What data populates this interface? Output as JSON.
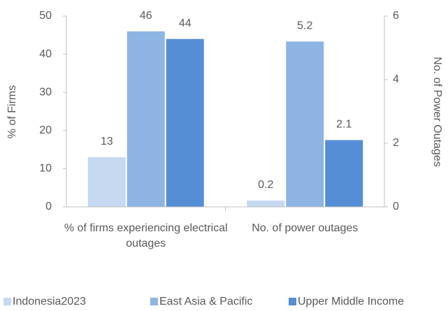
{
  "chart_data": {
    "type": "bar",
    "categories": [
      "% of firms experiencing electrical outages",
      "No. of power outages"
    ],
    "category_axis": [
      "y",
      "y2"
    ],
    "series": [
      {
        "name": "Indonesia2023",
        "color": "#c6d9f1",
        "values": [
          13,
          0.2
        ]
      },
      {
        "name": "East Asia & Pacific",
        "color": "#8eb4e3",
        "values": [
          46,
          5.2
        ]
      },
      {
        "name": "Upper Middle Income",
        "color": "#558ed5",
        "values": [
          44,
          2.1
        ]
      }
    ],
    "ylabel": "% of Firms",
    "y2label": "No. of Power Outages",
    "ylim": [
      0,
      50
    ],
    "yticks": [
      0,
      10,
      20,
      30,
      40,
      50
    ],
    "y2lim": [
      0,
      6
    ],
    "y2ticks": [
      0,
      2,
      4,
      6
    ],
    "legend": "bottom"
  }
}
